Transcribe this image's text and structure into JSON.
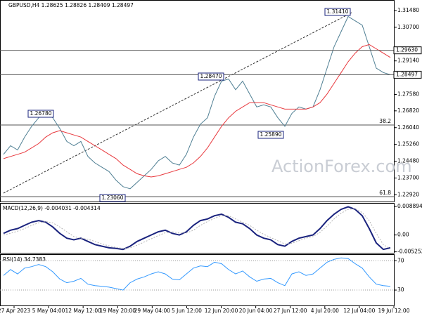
{
  "chart_data": [
    {
      "type": "line",
      "title": "GBPUSD,H4 1.28625 1.28826 1.28409 1.28497",
      "x_labels": [
        "27 Apr 2023",
        "5 May 04:00",
        "12 May 12:00",
        "19 May 20:00",
        "29 May 04:00",
        "5 Jun 12:00",
        "12 Jun 20:00",
        "20 Jun 04:00",
        "27 Jun 12:00",
        "4 Jul 20:00",
        "12 Jul 04:00",
        "19 Jul 12:00"
      ],
      "series": [
        {
          "color": "#4f7f93",
          "values": [
            1.248,
            1.252,
            1.25,
            1.256,
            1.261,
            1.265,
            1.267,
            1.265,
            1.26,
            1.254,
            1.252,
            1.254,
            1.247,
            1.244,
            1.242,
            1.24,
            1.236,
            1.233,
            1.232,
            1.235,
            1.238,
            1.241,
            1.245,
            1.247,
            1.244,
            1.243,
            1.248,
            1.256,
            1.262,
            1.265,
            1.275,
            1.282,
            1.283,
            1.278,
            1.282,
            1.276,
            1.27,
            1.271,
            1.27,
            1.265,
            1.261,
            1.267,
            1.27,
            1.269,
            1.27,
            1.278,
            1.288,
            1.298,
            1.305,
            1.312,
            1.31,
            1.308,
            1.298,
            1.288,
            1.286,
            1.285
          ]
        },
        {
          "color": "#e8383d",
          "values": [
            1.246,
            1.247,
            1.248,
            1.249,
            1.251,
            1.253,
            1.256,
            1.258,
            1.259,
            1.258,
            1.257,
            1.256,
            1.254,
            1.252,
            1.25,
            1.248,
            1.246,
            1.243,
            1.241,
            1.239,
            1.238,
            1.2375,
            1.238,
            1.239,
            1.24,
            1.241,
            1.242,
            1.244,
            1.247,
            1.251,
            1.256,
            1.261,
            1.265,
            1.268,
            1.27,
            1.272,
            1.272,
            1.272,
            1.271,
            1.27,
            1.269,
            1.269,
            1.269,
            1.269,
            1.27,
            1.272,
            1.276,
            1.281,
            1.286,
            1.291,
            1.295,
            1.298,
            1.299,
            1.297,
            1.295,
            1.293
          ]
        }
      ],
      "ylim": [
        1.22575,
        1.31935
      ],
      "yticks": [
        {
          "value": 1.3148,
          "label": "1.31480"
        },
        {
          "value": 1.307,
          "label": "1.30700"
        },
        {
          "value": 1.2914,
          "label": "1.29140"
        },
        {
          "value": 1.2758,
          "label": "1.27580"
        },
        {
          "value": 1.2682,
          "label": "1.26820"
        },
        {
          "value": 1.2604,
          "label": "1.26040"
        },
        {
          "value": 1.2526,
          "label": "1.25260"
        },
        {
          "value": 1.2448,
          "label": "1.24480"
        },
        {
          "value": 1.237,
          "label": "1.23700"
        },
        {
          "value": 1.2292,
          "label": "1.22920"
        }
      ],
      "levels": [
        {
          "value": 1.2963,
          "label": "1.29630"
        },
        {
          "value": 1.28497,
          "label": "1.28497"
        }
      ],
      "annotations": [
        "1.31410",
        "1.28470",
        "1.26780",
        "1.25890",
        "1.23060"
      ],
      "fib_labels": [
        "38.2",
        "61.8"
      ],
      "watermark": "ActionForex.com"
    },
    {
      "type": "line",
      "title": "MACD(12,26,9) -0.004031 -0.004314",
      "series": [
        {
          "color": "#1a237e",
          "values": [
            0.0005,
            0.0015,
            0.002,
            0.003,
            0.004,
            0.0045,
            0.004,
            0.0025,
            0.0005,
            -0.001,
            -0.0015,
            -0.001,
            -0.002,
            -0.003,
            -0.0035,
            -0.004,
            -0.0042,
            -0.0045,
            -0.0035,
            -0.002,
            -0.001,
            0,
            0.001,
            0.0015,
            0.0005,
            0,
            0.001,
            0.003,
            0.0045,
            0.005,
            0.006,
            0.0065,
            0.0055,
            0.004,
            0.0035,
            0.002,
            0,
            -0.001,
            -0.0015,
            -0.003,
            -0.0035,
            -0.002,
            -0.001,
            -0.0005,
            0,
            0.002,
            0.0045,
            0.0065,
            0.008,
            0.0088,
            0.008,
            0.006,
            0.002,
            -0.0025,
            -0.0045,
            -0.004
          ]
        },
        {
          "color": "#b5b5b5",
          "values": [
            0,
            0.0005,
            0.0012,
            0.002,
            0.003,
            0.0038,
            0.0042,
            0.0038,
            0.0025,
            0.001,
            -0.0005,
            -0.001,
            -0.0013,
            -0.002,
            -0.0028,
            -0.0034,
            -0.0039,
            -0.0042,
            -0.004,
            -0.0032,
            -0.0022,
            -0.0012,
            -0.0002,
            0.0007,
            0.001,
            0.0006,
            0.0006,
            0.0015,
            0.003,
            0.0042,
            0.0052,
            0.006,
            0.006,
            0.005,
            0.004,
            0.003,
            0.0015,
            0.0002,
            -0.0008,
            -0.0018,
            -0.0028,
            -0.0026,
            -0.0018,
            -0.001,
            -0.0005,
            0.0008,
            0.0028,
            0.005,
            0.0068,
            0.008,
            0.0082,
            0.007,
            0.0045,
            0.0005,
            -0.003,
            -0.0043
          ]
        }
      ],
      "ylim": [
        -0.00578,
        0.00978
      ],
      "yticks": [
        0.008894,
        {
          "value": 0,
          "label": "0.00"
        },
        -0.005252
      ]
    },
    {
      "type": "line",
      "title": "RSI(14) 34.7383",
      "series": [
        {
          "color": "#3399ff",
          "values": [
            50,
            58,
            52,
            60,
            62,
            65,
            62,
            55,
            45,
            40,
            42,
            46,
            38,
            36,
            35,
            34,
            32,
            30,
            40,
            45,
            48,
            52,
            55,
            52,
            45,
            44,
            52,
            60,
            63,
            62,
            68,
            66,
            58,
            52,
            56,
            48,
            42,
            45,
            46,
            40,
            36,
            52,
            55,
            50,
            52,
            60,
            68,
            72,
            74,
            73,
            66,
            60,
            48,
            38,
            36,
            35
          ]
        }
      ],
      "ylim": [
        8,
        78
      ],
      "yticks": [
        70,
        30
      ]
    }
  ]
}
